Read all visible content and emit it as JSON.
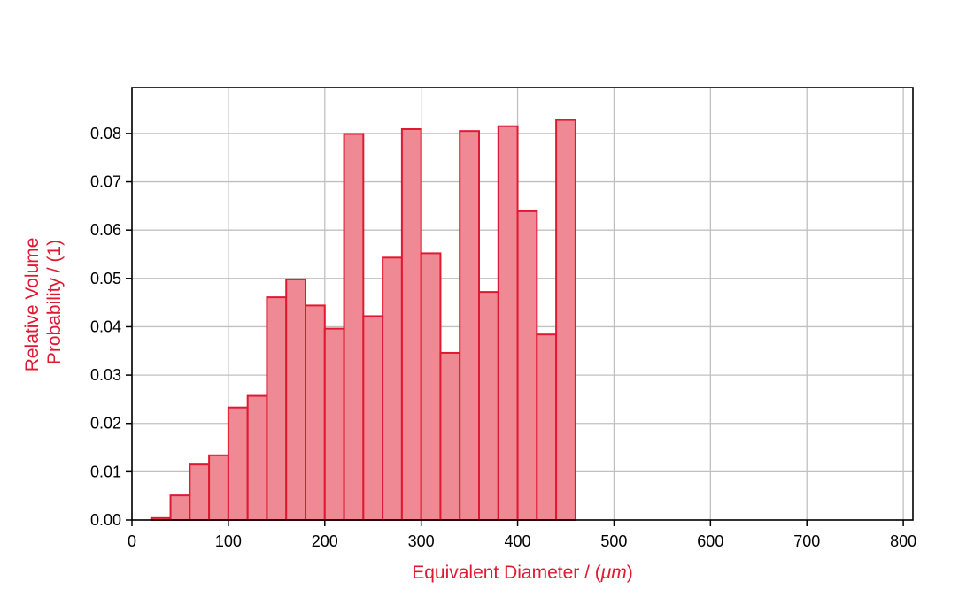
{
  "chart_data": {
    "type": "bar",
    "subtype": "histogram",
    "title": "",
    "xlabel": "Equivalent Diameter / (",
    "xlabel_unit": "μm",
    "xlabel_suffix": ")",
    "ylabel_lines": [
      "Relative Volume",
      "Probability / (1)"
    ],
    "xlim": [
      0,
      810
    ],
    "ylim": [
      0,
      0.0895
    ],
    "xticks": [
      0,
      100,
      200,
      300,
      400,
      500,
      600,
      700,
      800
    ],
    "yticks": [
      "0.00",
      "0.01",
      "0.02",
      "0.03",
      "0.04",
      "0.05",
      "0.06",
      "0.07",
      "0.08"
    ],
    "grid": true,
    "bin_edges": [
      20,
      40,
      60,
      80,
      100,
      120,
      140,
      160,
      180,
      200,
      220,
      240,
      260,
      280,
      300,
      320,
      340,
      360,
      380,
      400,
      420,
      440,
      460,
      480,
      500,
      520,
      540,
      560,
      580,
      600,
      620,
      640,
      660,
      680,
      700,
      720,
      740,
      760,
      780,
      800
    ],
    "values": [
      0.0004,
      0.0051,
      0.0115,
      0.0134,
      0.0233,
      0.0257,
      0.0461,
      0.0498,
      0.0444,
      0.0396,
      0.0799,
      0.0422,
      0.0543,
      0.0809,
      0.0552,
      0.0346,
      0.0805,
      0.0472,
      0.0815,
      0.0639,
      0.0384,
      0.0828,
      0.0,
      0.0,
      0.0,
      0.0,
      0.0,
      0.0,
      0.0,
      0.0,
      0.0,
      0.0,
      0.0,
      0.0,
      0.0,
      0.0,
      0.0,
      0.0,
      0.0
    ],
    "bar_fill": "#ef8a95",
    "bar_edge": "#e01933",
    "label_color": "#e01933",
    "axis_color": "#000000",
    "grid_color": "#c0c0c0"
  }
}
